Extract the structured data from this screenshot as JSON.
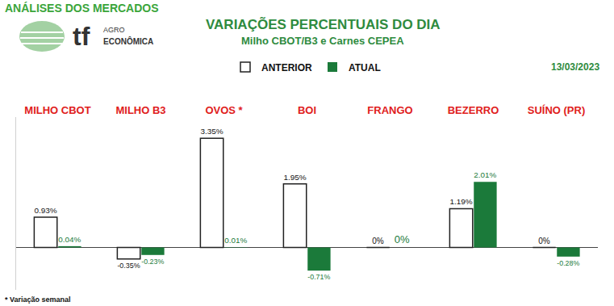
{
  "header": {
    "section": "ANÁLISES DOS MERCADOS",
    "logo": [
      "tf",
      "AGRO",
      "ECONÔMICA"
    ],
    "date": "13/03/2023",
    "footnote": "* Variação semanal"
  },
  "chart_data": {
    "type": "bar",
    "title": "VARIAÇÕES PERCENTUAIS DO DIA",
    "subtitle": "Milho CBOT/B3 e Carnes CEPEA",
    "categories": [
      "MILHO CBOT",
      "MILHO B3",
      "OVOS *",
      "BOI",
      "FRANGO",
      "BEZERRO",
      "SUÍNO (PR)"
    ],
    "series": [
      {
        "name": "ANTERIOR",
        "color": "#ffffff",
        "values": [
          0.93,
          -0.35,
          3.35,
          1.95,
          0,
          1.19,
          0
        ],
        "value_labels": [
          "0.93%",
          "-0.35%",
          "3.35%",
          "1.95%",
          "0%",
          "1.19%",
          "0%"
        ]
      },
      {
        "name": "ATUAL",
        "color": "#1b7a3a",
        "values": [
          0.04,
          -0.23,
          0.01,
          -0.71,
          0,
          2.01,
          -0.28
        ],
        "value_labels": [
          "0.04%",
          "-0.23%",
          "0.01%",
          "-0.71%",
          "0%",
          "2.01%",
          "-0.28%"
        ]
      }
    ],
    "ylim": [
      -1.3,
      4
    ],
    "yticks": [
      0
    ],
    "grid": true,
    "tick_labels": "x",
    "data_labels": true,
    "legend": "top"
  }
}
